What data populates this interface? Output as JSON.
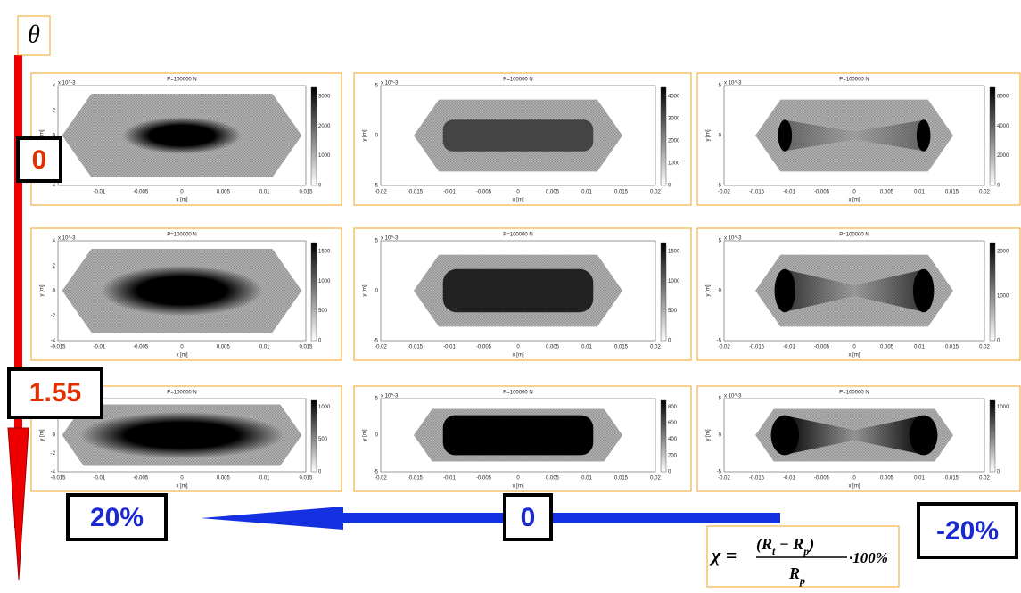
{
  "theta": "θ",
  "labels": {
    "theta_top": "0",
    "theta_bottom": "1.55",
    "chi_left": "20%",
    "chi_mid": "0",
    "chi_right": "-20%"
  },
  "formula": {
    "lhs": "χ =",
    "numerator": [
      "(R",
      "t",
      " − R",
      "p",
      ")"
    ],
    "denominator": [
      "R",
      "p"
    ],
    "factor": "·100%"
  },
  "panels": [
    {
      "title": "P=100000 N",
      "xlabel": "x [m]",
      "ylabel": "y [m]",
      "exponent": "x 10^-3",
      "xticks": [
        "-0.01",
        "-0.005",
        "0",
        "0.005",
        "0.01",
        "0.015"
      ],
      "yticks": [
        "4",
        "2",
        "0",
        "-2",
        "-4"
      ],
      "cbticks": [
        "3000",
        "2000",
        "1000",
        "0"
      ]
    },
    {
      "title": "P=100000 N",
      "xlabel": "x [m]",
      "ylabel": "y [m]",
      "exponent": "x 10^-3",
      "xticks": [
        "-0.02",
        "-0.015",
        "-0.01",
        "-0.005",
        "0",
        "0.005",
        "0.01",
        "0.015",
        "0.02"
      ],
      "yticks": [
        "5",
        "0",
        "-5"
      ],
      "cbticks": [
        "4000",
        "3000",
        "2000",
        "1000",
        "0"
      ]
    },
    {
      "title": "P=100000 N",
      "xlabel": "x [m]",
      "ylabel": "y [m]",
      "exponent": "x 10^-3",
      "xticks": [
        "-0.02",
        "-0.015",
        "-0.01",
        "-0.005",
        "0",
        "0.005",
        "0.01",
        "0.015",
        "0.02"
      ],
      "yticks": [
        "5",
        "0",
        "-5"
      ],
      "cbticks": [
        "6000",
        "4000",
        "2000",
        "0"
      ]
    },
    {
      "title": "P=100000 N",
      "xlabel": "x [m]",
      "ylabel": "y [m]",
      "exponent": "x 10^-3",
      "xticks": [
        "-0.015",
        "-0.01",
        "-0.005",
        "0",
        "0.005",
        "0.01",
        "0.015"
      ],
      "yticks": [
        "4",
        "2",
        "0",
        "-2",
        "-4"
      ],
      "cbticks": [
        "1500",
        "1000",
        "500",
        "0"
      ]
    },
    {
      "title": "P=100000 N",
      "xlabel": "x [m]",
      "ylabel": "y [m]",
      "exponent": "x 10^-3",
      "xticks": [
        "-0.02",
        "-0.015",
        "-0.01",
        "-0.005",
        "0",
        "0.005",
        "0.01",
        "0.015",
        "0.02"
      ],
      "yticks": [
        "5",
        "0",
        "-5"
      ],
      "cbticks": [
        "1500",
        "1000",
        "500",
        "0"
      ]
    },
    {
      "title": "P=100000 N",
      "xlabel": "x [m]",
      "ylabel": "y [m]",
      "exponent": "x 10^-3",
      "xticks": [
        "-0.02",
        "-0.015",
        "-0.01",
        "-0.005",
        "0",
        "0.005",
        "0.01",
        "0.015",
        "0.02"
      ],
      "yticks": [
        "5",
        "0",
        "-5"
      ],
      "cbticks": [
        "2000",
        "1000",
        "0"
      ]
    },
    {
      "title": "P=100000 N",
      "xlabel": "x [m]",
      "ylabel": "y [m]",
      "exponent": "x 10^-3",
      "xticks": [
        "-0.015",
        "-0.01",
        "-0.005",
        "0",
        "0.005",
        "0.01",
        "0.015"
      ],
      "yticks": [
        "4",
        "2",
        "0",
        "-2",
        "-4"
      ],
      "cbticks": [
        "1000",
        "500",
        "0"
      ]
    },
    {
      "title": "P=100000 N",
      "xlabel": "x [m]",
      "ylabel": "y [m]",
      "exponent": "x 10^-3",
      "xticks": [
        "-0.02",
        "-0.015",
        "-0.01",
        "-0.005",
        "0",
        "0.005",
        "0.01",
        "0.015",
        "0.02"
      ],
      "yticks": [
        "5",
        "0",
        "-5"
      ],
      "cbticks": [
        "800",
        "600",
        "400",
        "200",
        "0"
      ]
    },
    {
      "title": "P=100000 N",
      "xlabel": "x [m]",
      "ylabel": "y [m]",
      "exponent": "x 10^-3",
      "xticks": [
        "-0.02",
        "-0.015",
        "-0.01",
        "-0.005",
        "0",
        "0.005",
        "0.01",
        "0.015",
        "0.02"
      ],
      "yticks": [
        "5",
        "0",
        "-5"
      ],
      "cbticks": [
        "1000",
        "0"
      ]
    }
  ]
}
